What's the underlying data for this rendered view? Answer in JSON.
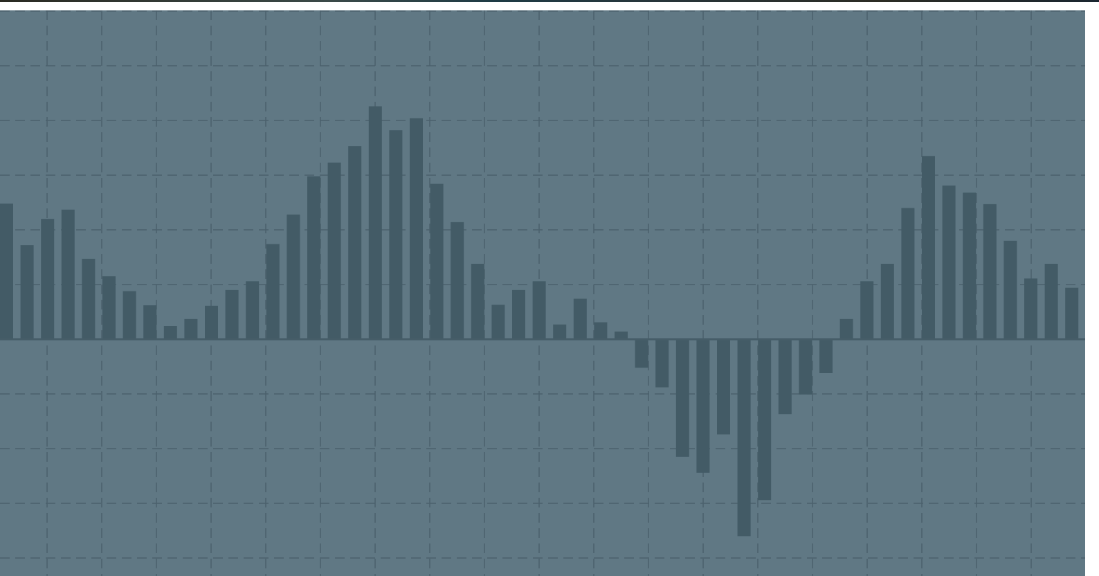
{
  "colors": {
    "background": "#607884",
    "bar": "#435b66",
    "grid": "#4b616c",
    "baseline": "#465d68"
  },
  "chart_data": {
    "type": "bar",
    "grid": true,
    "legend": "none",
    "title": "",
    "xlabel": "",
    "ylabel": "",
    "ylim": [
      -4,
      6
    ],
    "values": [
      2.48,
      1.72,
      2.2,
      2.37,
      1.47,
      1.15,
      0.88,
      0.62,
      0.24,
      0.37,
      0.61,
      0.9,
      1.06,
      1.74,
      2.28,
      2.98,
      3.23,
      3.53,
      4.26,
      3.82,
      4.04,
      2.84,
      2.14,
      1.38,
      0.63,
      0.9,
      1.06,
      0.27,
      0.74,
      0.31,
      0.14,
      -0.52,
      -0.88,
      -2.15,
      -2.44,
      -1.74,
      -3.6,
      -2.94,
      -1.37,
      -1.01,
      -0.62,
      0.37,
      1.06,
      1.38,
      2.4,
      3.35,
      2.81,
      2.68,
      2.47,
      1.8,
      1.11,
      1.38,
      0.94
    ]
  }
}
